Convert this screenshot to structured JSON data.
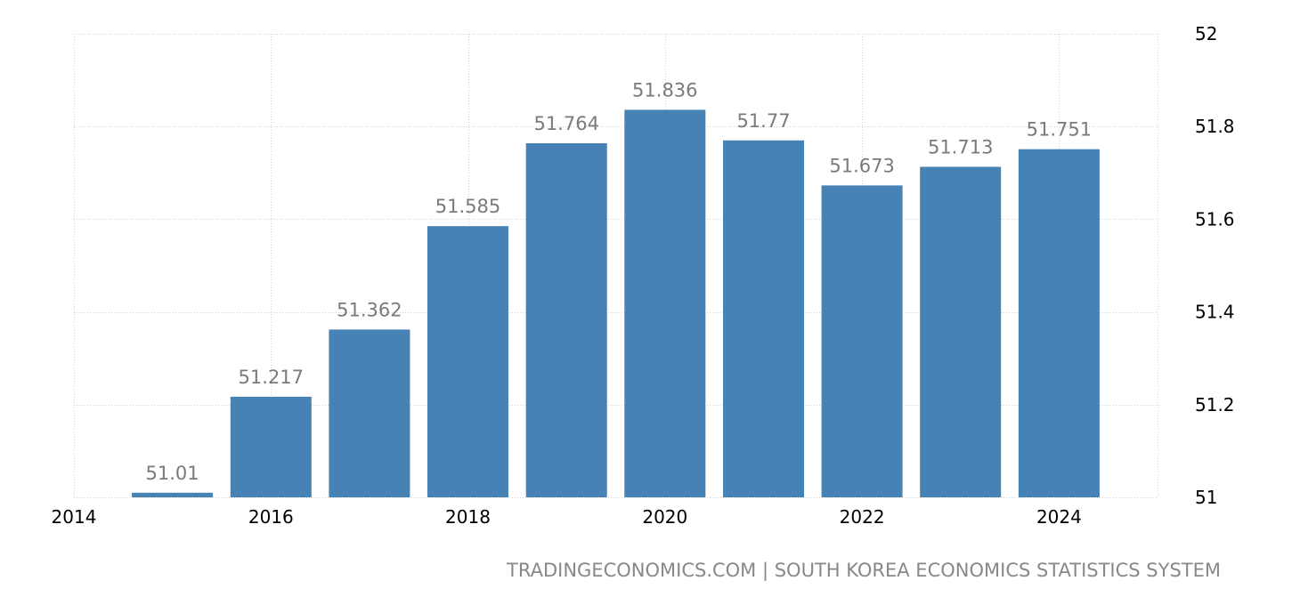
{
  "chart_data": {
    "type": "bar",
    "x": [
      2015,
      2016,
      2017,
      2018,
      2019,
      2020,
      2021,
      2022,
      2023,
      2024
    ],
    "values": [
      51.01,
      51.217,
      51.362,
      51.585,
      51.764,
      51.836,
      51.77,
      51.673,
      51.713,
      51.751
    ],
    "value_labels": [
      "51.01",
      "51.217",
      "51.362",
      "51.585",
      "51.764",
      "51.836",
      "51.77",
      "51.673",
      "51.713",
      "51.751"
    ],
    "x_ticks": [
      "2014",
      "2016",
      "2018",
      "2020",
      "2022",
      "2024"
    ],
    "y_ticks": [
      "51",
      "51.2",
      "51.4",
      "51.6",
      "51.8",
      "52"
    ],
    "xlim": [
      2014,
      2025
    ],
    "ylim": [
      51,
      52
    ],
    "y_axis_side": "right",
    "grid": true,
    "bar_color": "#4682b4",
    "label_color": "#7a7a7a"
  },
  "source": "TRADINGECONOMICS.COM | SOUTH KOREA ECONOMICS STATISTICS SYSTEM"
}
